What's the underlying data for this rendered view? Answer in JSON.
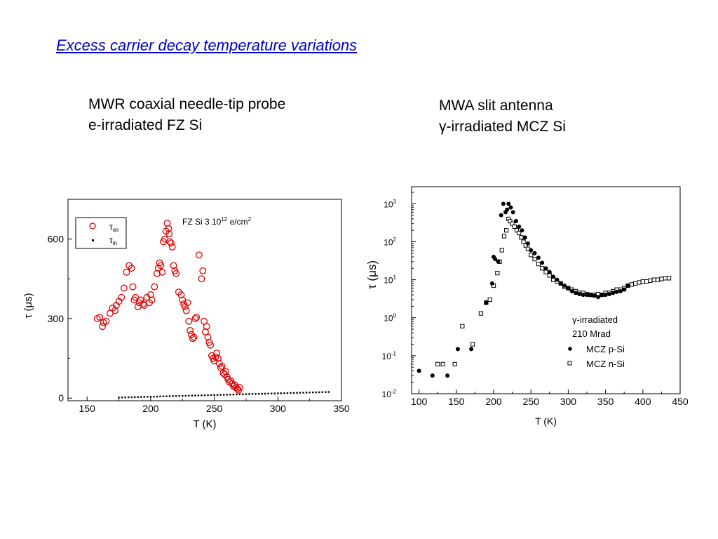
{
  "slide": {
    "title": "Excess carrier decay temperature variations",
    "left_caption": [
      "MWR coaxial needle-tip probe",
      "e-irradiated FZ Si"
    ],
    "right_caption": [
      "MWA slit antenna",
      "γ-irradiated MCZ Si"
    ]
  },
  "chart_data": [
    {
      "type": "scatter",
      "title": "",
      "annotation": "FZ Si 3 10<sup>12</sup> e/cm<sup>2</sup>",
      "annotation_text": [
        "FZ Si 3 10",
        "12",
        " e/cm",
        "2"
      ],
      "xlabel": "T  (K)",
      "ylabel": "τ   (μs)",
      "ylabel_parts": [
        "τ",
        "(μs)"
      ],
      "xlim": [
        135,
        350
      ],
      "ylim": [
        -10,
        750
      ],
      "xticks": [
        150,
        200,
        250,
        300,
        350
      ],
      "yticks": [
        0,
        300,
        600
      ],
      "legend_position": "top-left",
      "series": [
        {
          "name": "τ<sub>as</sub>",
          "legend_parts": [
            "τ",
            "as"
          ],
          "marker": "open-circle",
          "color": "#e00000",
          "x": [
            158,
            160,
            162,
            163,
            165,
            168,
            170,
            172,
            173,
            175,
            177,
            179,
            181,
            183,
            185,
            186,
            187,
            188,
            190,
            191,
            192,
            194,
            195,
            197,
            199,
            200,
            201,
            203,
            205,
            206,
            207,
            208,
            209,
            210,
            211,
            212,
            213,
            214,
            214.5,
            215,
            216,
            217,
            218,
            219,
            220,
            222,
            224,
            225,
            226,
            227,
            228,
            229,
            230,
            231,
            232,
            233,
            234,
            235,
            236,
            238,
            240,
            241,
            242,
            243,
            244,
            245,
            246,
            247,
            248,
            249,
            250,
            251,
            252,
            253,
            254,
            255,
            256,
            257,
            258,
            259,
            260,
            261,
            262,
            263,
            264,
            265,
            266,
            267,
            268,
            269,
            270
          ],
          "y": [
            300,
            305,
            270,
            285,
            290,
            320,
            340,
            330,
            350,
            365,
            380,
            415,
            475,
            500,
            490,
            420,
            370,
            380,
            345,
            360,
            370,
            355,
            350,
            380,
            360,
            390,
            370,
            420,
            470,
            490,
            510,
            500,
            475,
            590,
            600,
            630,
            660,
            640,
            620,
            590,
            585,
            570,
            500,
            480,
            470,
            400,
            390,
            370,
            355,
            345,
            330,
            360,
            290,
            255,
            240,
            225,
            230,
            300,
            305,
            540,
            450,
            480,
            290,
            250,
            270,
            230,
            210,
            200,
            160,
            150,
            140,
            155,
            170,
            150,
            130,
            115,
            120,
            95,
            90,
            100,
            80,
            70,
            60,
            65,
            55,
            45,
            50,
            40,
            35,
            30,
            40
          ]
        },
        {
          "name": "τ<sub>in</sub>",
          "legend_parts": [
            "τ",
            "in"
          ],
          "marker": "small-square",
          "color": "#000000",
          "x_start": 175,
          "x_end": 340,
          "step": 2.5,
          "y_start": 2,
          "y_end": 23
        }
      ]
    },
    {
      "type": "scatter",
      "title": "",
      "xlabel": "T (K)",
      "ylabel": "τ  (μs)",
      "ylabel_parts": [
        "τ",
        "(μs)"
      ],
      "xlim": [
        90,
        450
      ],
      "ylim_log10": [
        -2,
        3.45
      ],
      "y_scale": "log",
      "xticks": [
        100,
        150,
        200,
        250,
        300,
        350,
        400,
        450
      ],
      "ytick_exponents": [
        -2,
        -1,
        0,
        1,
        2,
        3
      ],
      "ytick_base": "10",
      "legend_position": "bottom-right",
      "legend_header": [
        "γ-irradiated",
        "210 Mrad"
      ],
      "series": [
        {
          "name": "MCZ p-Si",
          "marker": "filled-circle",
          "color": "#000000",
          "x": [
            100,
            118,
            138,
            152,
            170,
            190,
            198,
            200,
            202,
            206,
            210,
            213,
            216,
            218,
            220,
            223,
            226,
            230,
            234,
            238,
            242,
            246,
            250,
            255,
            260,
            265,
            270,
            275,
            280,
            285,
            290,
            295,
            300,
            305,
            310,
            315,
            320,
            325,
            330,
            335,
            340,
            345,
            350,
            355,
            360,
            365,
            370,
            375,
            380
          ],
          "y": [
            0.04,
            0.03,
            0.03,
            0.15,
            0.15,
            2.5,
            8,
            40,
            35,
            30,
            500,
            1000,
            600,
            700,
            1000,
            800,
            600,
            350,
            250,
            200,
            130,
            90,
            60,
            50,
            38,
            28,
            20,
            16,
            12,
            10,
            8,
            7,
            6,
            5,
            4.5,
            4.2,
            4,
            4,
            4,
            3.8,
            3.5,
            4,
            4,
            4.2,
            4.5,
            4.8,
            5,
            5.5,
            7
          ]
        },
        {
          "name": "MCZ n-Si",
          "marker": "open-square",
          "color": "#000000",
          "x": [
            125,
            132,
            148,
            158,
            172,
            183,
            190,
            195,
            200,
            205,
            208,
            211,
            214,
            217,
            220,
            222,
            225,
            228,
            231,
            234,
            237,
            240,
            243,
            246,
            250,
            255,
            260,
            265,
            270,
            275,
            280,
            285,
            290,
            295,
            300,
            305,
            310,
            315,
            320,
            325,
            330,
            335,
            340,
            345,
            350,
            355,
            360,
            365,
            370,
            375,
            380,
            385,
            390,
            395,
            400,
            405,
            410,
            415,
            420,
            425,
            430,
            435
          ],
          "y": [
            0.06,
            0.06,
            0.06,
            0.6,
            0.2,
            1.3,
            2.5,
            3,
            7,
            15,
            30,
            60,
            140,
            200,
            400,
            350,
            300,
            250,
            200,
            170,
            130,
            100,
            80,
            65,
            45,
            35,
            26,
            20,
            16,
            13,
            10,
            9,
            8,
            6.5,
            6,
            5.5,
            5,
            4.5,
            4.5,
            4.2,
            4,
            4,
            4.2,
            4,
            4.5,
            4.5,
            5,
            5.5,
            5.5,
            6,
            7,
            7.5,
            8,
            8.5,
            9,
            9,
            9.5,
            10,
            10,
            10.5,
            11,
            11
          ]
        }
      ]
    }
  ]
}
